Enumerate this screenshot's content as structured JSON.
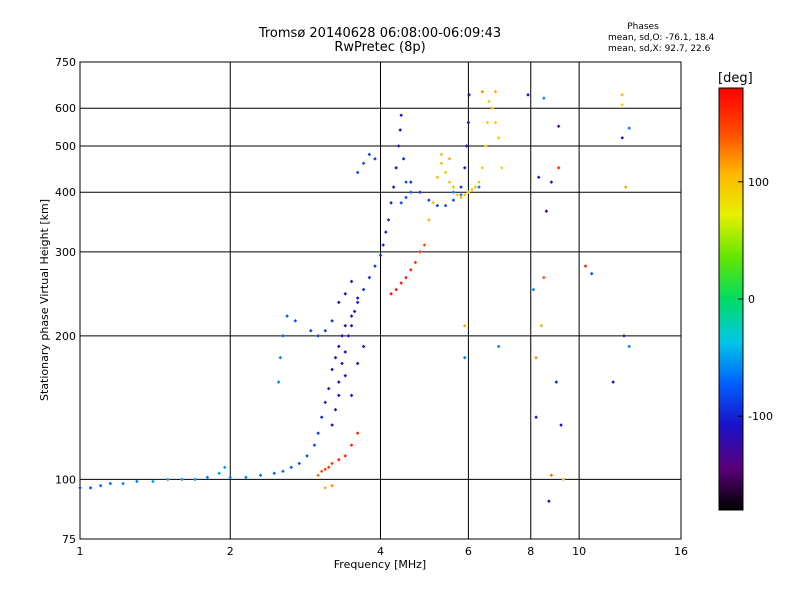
{
  "chart_data": {
    "type": "scatter",
    "title": "Tromsø 20140628 06:08:00-06:09:43",
    "subtitle": "RwPretec (8p)",
    "xlabel": "Frequency [MHz]",
    "ylabel": "Stationary phase Virtual Height [km]",
    "x_scale": "log",
    "y_scale": "log",
    "xlim": [
      1,
      16
    ],
    "ylim": [
      75,
      750
    ],
    "x_ticks": [
      1,
      2,
      4,
      6,
      8,
      10,
      16
    ],
    "x_tick_labels": [
      "1",
      "2",
      "4",
      "6",
      "8",
      "10",
      "16"
    ],
    "y_ticks": [
      75,
      100,
      200,
      300,
      400,
      500,
      600,
      750
    ],
    "y_tick_labels": [
      "75",
      "100",
      "200",
      "300",
      "400",
      "500",
      "600",
      "750"
    ],
    "grid": true,
    "phase_info": {
      "heading": "Phases",
      "line_o": "mean, sd,O: -76.1, 18.4",
      "line_x": "mean, sd,X:  92.7, 22.6"
    },
    "colorbar": {
      "label": "[deg]",
      "range": [
        -180,
        180
      ],
      "ticks": [
        100,
        0,
        -100
      ],
      "tick_labels": [
        "100",
        "0",
        "-100"
      ]
    },
    "series": [
      {
        "points": [
          {
            "x": 1.0,
            "y": 96,
            "c": -80
          },
          {
            "x": 1.05,
            "y": 96,
            "c": -80
          },
          {
            "x": 1.1,
            "y": 97,
            "c": -70
          },
          {
            "x": 1.15,
            "y": 98,
            "c": -70
          },
          {
            "x": 1.22,
            "y": 98,
            "c": -60
          },
          {
            "x": 1.3,
            "y": 99,
            "c": -60
          },
          {
            "x": 1.4,
            "y": 99,
            "c": -50
          },
          {
            "x": 1.5,
            "y": 100,
            "c": -50
          },
          {
            "x": 1.6,
            "y": 100,
            "c": -55
          },
          {
            "x": 1.7,
            "y": 100,
            "c": -55
          },
          {
            "x": 1.8,
            "y": 101,
            "c": -60
          },
          {
            "x": 1.9,
            "y": 103,
            "c": -50
          },
          {
            "x": 1.95,
            "y": 106,
            "c": -50
          },
          {
            "x": 2.0,
            "y": 101,
            "c": -60
          },
          {
            "x": 2.15,
            "y": 101,
            "c": -60
          },
          {
            "x": 2.3,
            "y": 102,
            "c": -65
          },
          {
            "x": 2.45,
            "y": 103,
            "c": -70
          },
          {
            "x": 2.55,
            "y": 104,
            "c": -70
          },
          {
            "x": 2.65,
            "y": 106,
            "c": -75
          },
          {
            "x": 2.75,
            "y": 108,
            "c": -75
          },
          {
            "x": 2.85,
            "y": 112,
            "c": -80
          },
          {
            "x": 2.95,
            "y": 118,
            "c": -85
          },
          {
            "x": 3.0,
            "y": 125,
            "c": -90
          },
          {
            "x": 3.05,
            "y": 135,
            "c": -100
          },
          {
            "x": 3.1,
            "y": 145,
            "c": -100
          },
          {
            "x": 3.15,
            "y": 155,
            "c": -105
          },
          {
            "x": 3.2,
            "y": 170,
            "c": -110
          },
          {
            "x": 3.25,
            "y": 180,
            "c": -105
          },
          {
            "x": 3.3,
            "y": 190,
            "c": -110
          },
          {
            "x": 3.35,
            "y": 200,
            "c": -110
          },
          {
            "x": 3.4,
            "y": 210,
            "c": -110
          },
          {
            "x": 3.5,
            "y": 220,
            "c": -100
          },
          {
            "x": 3.6,
            "y": 235,
            "c": -100
          },
          {
            "x": 3.7,
            "y": 250,
            "c": -95
          },
          {
            "x": 3.8,
            "y": 265,
            "c": -95
          },
          {
            "x": 3.9,
            "y": 280,
            "c": -90
          },
          {
            "x": 4.0,
            "y": 295,
            "c": -90
          },
          {
            "x": 4.05,
            "y": 310,
            "c": -95
          },
          {
            "x": 4.1,
            "y": 330,
            "c": -100
          },
          {
            "x": 4.15,
            "y": 350,
            "c": -100
          },
          {
            "x": 4.2,
            "y": 380,
            "c": -100
          },
          {
            "x": 4.25,
            "y": 410,
            "c": -105
          },
          {
            "x": 4.3,
            "y": 450,
            "c": -110
          },
          {
            "x": 4.35,
            "y": 500,
            "c": -110
          },
          {
            "x": 4.38,
            "y": 540,
            "c": -110
          },
          {
            "x": 4.4,
            "y": 580,
            "c": -110
          },
          {
            "x": 4.45,
            "y": 470,
            "c": -100
          },
          {
            "x": 4.6,
            "y": 420,
            "c": -95
          },
          {
            "x": 4.8,
            "y": 400,
            "c": -90
          },
          {
            "x": 5.0,
            "y": 385,
            "c": -85
          },
          {
            "x": 5.2,
            "y": 375,
            "c": -85
          },
          {
            "x": 5.4,
            "y": 375,
            "c": -80
          },
          {
            "x": 5.6,
            "y": 385,
            "c": -80
          },
          {
            "x": 5.8,
            "y": 410,
            "c": -90
          },
          {
            "x": 5.9,
            "y": 450,
            "c": -100
          },
          {
            "x": 5.95,
            "y": 500,
            "c": -110
          },
          {
            "x": 6.0,
            "y": 560,
            "c": -110
          },
          {
            "x": 6.02,
            "y": 640,
            "c": -110
          },
          {
            "x": 2.5,
            "y": 160,
            "c": -60
          },
          {
            "x": 2.52,
            "y": 180,
            "c": -60
          },
          {
            "x": 2.55,
            "y": 200,
            "c": -70
          },
          {
            "x": 2.6,
            "y": 220,
            "c": -75
          },
          {
            "x": 2.7,
            "y": 215,
            "c": -80
          },
          {
            "x": 2.9,
            "y": 205,
            "c": -80
          },
          {
            "x": 3.0,
            "y": 200,
            "c": -85
          },
          {
            "x": 3.1,
            "y": 205,
            "c": -90
          },
          {
            "x": 3.2,
            "y": 215,
            "c": -95
          },
          {
            "x": 3.2,
            "y": 130,
            "c": -110
          },
          {
            "x": 3.25,
            "y": 140,
            "c": -115
          },
          {
            "x": 3.3,
            "y": 150,
            "c": -110
          },
          {
            "x": 3.3,
            "y": 160,
            "c": -115
          },
          {
            "x": 3.35,
            "y": 175,
            "c": -110
          },
          {
            "x": 3.4,
            "y": 185,
            "c": -110
          },
          {
            "x": 3.45,
            "y": 200,
            "c": -105
          },
          {
            "x": 3.5,
            "y": 210,
            "c": -110
          },
          {
            "x": 3.55,
            "y": 225,
            "c": -110
          },
          {
            "x": 3.6,
            "y": 240,
            "c": -105
          },
          {
            "x": 3.5,
            "y": 260,
            "c": -105
          },
          {
            "x": 3.4,
            "y": 245,
            "c": -110
          },
          {
            "x": 3.3,
            "y": 235,
            "c": -115
          },
          {
            "x": 3.4,
            "y": 165,
            "c": -115
          },
          {
            "x": 3.5,
            "y": 150,
            "c": -110
          },
          {
            "x": 3.6,
            "y": 175,
            "c": -110
          },
          {
            "x": 3.7,
            "y": 190,
            "c": -110
          },
          {
            "x": 3.6,
            "y": 440,
            "c": -80
          },
          {
            "x": 3.7,
            "y": 460,
            "c": -80
          },
          {
            "x": 3.8,
            "y": 480,
            "c": -85
          },
          {
            "x": 3.9,
            "y": 470,
            "c": -90
          },
          {
            "x": 4.5,
            "y": 420,
            "c": -80
          },
          {
            "x": 4.6,
            "y": 400,
            "c": -75
          },
          {
            "x": 4.4,
            "y": 380,
            "c": -80
          },
          {
            "x": 4.5,
            "y": 390,
            "c": -80
          },
          {
            "x": 5.6,
            "y": 400,
            "c": -60
          },
          {
            "x": 5.8,
            "y": 395,
            "c": -60
          },
          {
            "x": 6.3,
            "y": 410,
            "c": -60
          },
          {
            "x": 3.0,
            "y": 102,
            "c": 130
          },
          {
            "x": 3.05,
            "y": 104,
            "c": 140
          },
          {
            "x": 3.1,
            "y": 105,
            "c": 145
          },
          {
            "x": 3.15,
            "y": 106,
            "c": 150
          },
          {
            "x": 3.2,
            "y": 108,
            "c": 150
          },
          {
            "x": 3.3,
            "y": 110,
            "c": 160
          },
          {
            "x": 3.4,
            "y": 112,
            "c": 160
          },
          {
            "x": 3.5,
            "y": 118,
            "c": 165
          },
          {
            "x": 3.6,
            "y": 125,
            "c": 160
          },
          {
            "x": 3.1,
            "y": 96,
            "c": 110
          },
          {
            "x": 3.2,
            "y": 97,
            "c": 120
          },
          {
            "x": 4.2,
            "y": 245,
            "c": 170
          },
          {
            "x": 4.3,
            "y": 250,
            "c": 170
          },
          {
            "x": 4.4,
            "y": 258,
            "c": 165
          },
          {
            "x": 4.5,
            "y": 265,
            "c": 165
          },
          {
            "x": 4.6,
            "y": 275,
            "c": 160
          },
          {
            "x": 4.7,
            "y": 285,
            "c": 155
          },
          {
            "x": 4.8,
            "y": 300,
            "c": 150
          },
          {
            "x": 4.9,
            "y": 310,
            "c": 140
          },
          {
            "x": 5.0,
            "y": 350,
            "c": 110
          },
          {
            "x": 5.1,
            "y": 380,
            "c": 100
          },
          {
            "x": 5.2,
            "y": 430,
            "c": 105
          },
          {
            "x": 5.3,
            "y": 460,
            "c": 100
          },
          {
            "x": 5.4,
            "y": 440,
            "c": 95
          },
          {
            "x": 5.5,
            "y": 420,
            "c": 100
          },
          {
            "x": 5.6,
            "y": 410,
            "c": 100
          },
          {
            "x": 5.7,
            "y": 395,
            "c": 95
          },
          {
            "x": 5.8,
            "y": 390,
            "c": 100
          },
          {
            "x": 5.9,
            "y": 395,
            "c": 95
          },
          {
            "x": 6.0,
            "y": 400,
            "c": 95
          },
          {
            "x": 6.1,
            "y": 405,
            "c": 95
          },
          {
            "x": 6.2,
            "y": 410,
            "c": 95
          },
          {
            "x": 6.3,
            "y": 420,
            "c": 95
          },
          {
            "x": 6.4,
            "y": 450,
            "c": 90
          },
          {
            "x": 6.5,
            "y": 500,
            "c": 90
          },
          {
            "x": 6.55,
            "y": 560,
            "c": 95
          },
          {
            "x": 6.6,
            "y": 620,
            "c": 95
          },
          {
            "x": 6.7,
            "y": 600,
            "c": 100
          },
          {
            "x": 6.8,
            "y": 560,
            "c": 95
          },
          {
            "x": 6.9,
            "y": 520,
            "c": 95
          },
          {
            "x": 7.0,
            "y": 450,
            "c": 90
          },
          {
            "x": 5.3,
            "y": 480,
            "c": 100
          },
          {
            "x": 5.5,
            "y": 470,
            "c": 110
          },
          {
            "x": 6.4,
            "y": 650,
            "c": 120
          },
          {
            "x": 6.8,
            "y": 650,
            "c": 110
          },
          {
            "x": 7.9,
            "y": 640,
            "c": -110
          },
          {
            "x": 8.1,
            "y": 250,
            "c": -60
          },
          {
            "x": 8.2,
            "y": 180,
            "c": 120
          },
          {
            "x": 8.2,
            "y": 135,
            "c": -110
          },
          {
            "x": 8.3,
            "y": 430,
            "c": -110
          },
          {
            "x": 8.4,
            "y": 210,
            "c": 110
          },
          {
            "x": 8.5,
            "y": 630,
            "c": -60
          },
          {
            "x": 8.5,
            "y": 265,
            "c": 140
          },
          {
            "x": 8.6,
            "y": 365,
            "c": -130
          },
          {
            "x": 8.7,
            "y": 90,
            "c": -110
          },
          {
            "x": 8.8,
            "y": 420,
            "c": -110
          },
          {
            "x": 8.8,
            "y": 102,
            "c": 130
          },
          {
            "x": 9.0,
            "y": 160,
            "c": -100
          },
          {
            "x": 9.1,
            "y": 550,
            "c": -130
          },
          {
            "x": 9.1,
            "y": 450,
            "c": 160
          },
          {
            "x": 9.2,
            "y": 130,
            "c": -110
          },
          {
            "x": 9.3,
            "y": 100,
            "c": 100
          },
          {
            "x": 10.3,
            "y": 280,
            "c": 160
          },
          {
            "x": 10.6,
            "y": 270,
            "c": -80
          },
          {
            "x": 11.7,
            "y": 160,
            "c": -110
          },
          {
            "x": 12.2,
            "y": 640,
            "c": 100
          },
          {
            "x": 12.2,
            "y": 610,
            "c": 90
          },
          {
            "x": 12.2,
            "y": 520,
            "c": -110
          },
          {
            "x": 12.3,
            "y": 200,
            "c": -100
          },
          {
            "x": 12.4,
            "y": 410,
            "c": 110
          },
          {
            "x": 12.6,
            "y": 190,
            "c": -60
          },
          {
            "x": 12.6,
            "y": 545,
            "c": -60
          },
          {
            "x": 6.9,
            "y": 190,
            "c": -60
          },
          {
            "x": 5.9,
            "y": 210,
            "c": 110
          },
          {
            "x": 5.9,
            "y": 180,
            "c": -60
          }
        ]
      }
    ]
  }
}
